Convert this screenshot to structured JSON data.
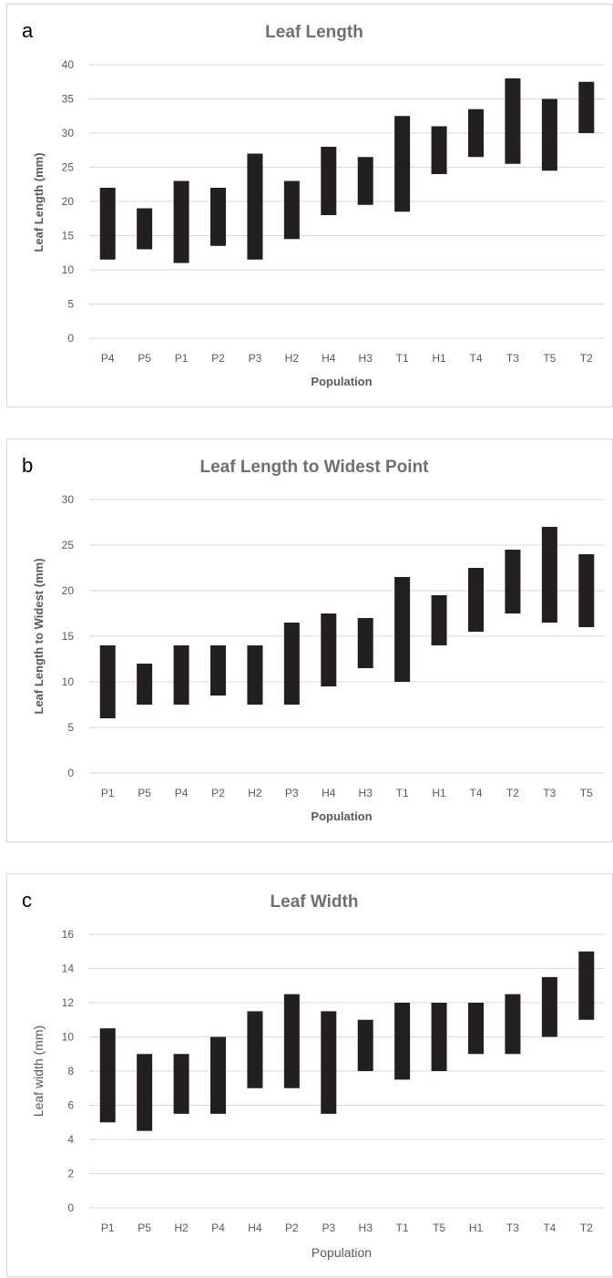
{
  "chart_data": [
    {
      "type": "bar",
      "panel_letter": "a",
      "title": "Leaf Length",
      "xlabel": "Population",
      "ylabel": "Leaf Length (mm)",
      "ylim": [
        0,
        40
      ],
      "yticks": [
        0,
        5,
        10,
        15,
        20,
        25,
        30,
        35,
        40
      ],
      "grid": true,
      "categories": [
        "P4",
        "P5",
        "P1",
        "P2",
        "P3",
        "H2",
        "H4",
        "H3",
        "T1",
        "H1",
        "T4",
        "T3",
        "T5",
        "T2"
      ],
      "series": [
        {
          "low": [
            11.5,
            13,
            11,
            13.5,
            11.5,
            14.5,
            18,
            19.5,
            18.5,
            24,
            26.5,
            25.5,
            24.5,
            30
          ],
          "high": [
            22,
            19,
            23,
            22,
            27,
            23,
            28,
            26.5,
            32.5,
            31,
            33.5,
            38,
            35,
            37.5
          ]
        }
      ]
    },
    {
      "type": "bar",
      "panel_letter": "b",
      "title": "Leaf Length to Widest Point",
      "xlabel": "Population",
      "ylabel": "Leaf Length to Widest (mm)",
      "ylim": [
        0,
        30
      ],
      "yticks": [
        0,
        5,
        10,
        15,
        20,
        25,
        30
      ],
      "grid": true,
      "categories": [
        "P1",
        "P5",
        "P4",
        "P2",
        "H2",
        "P3",
        "H4",
        "H3",
        "T1",
        "H1",
        "T4",
        "T2",
        "T3",
        "T5"
      ],
      "series": [
        {
          "low": [
            6,
            7.5,
            7.5,
            8.5,
            7.5,
            7.5,
            9.5,
            11.5,
            10,
            14,
            15.5,
            17.5,
            16.5,
            16
          ],
          "high": [
            14,
            12,
            14,
            14,
            14,
            16.5,
            17.5,
            17,
            21.5,
            19.5,
            22.5,
            24.5,
            27,
            24
          ]
        }
      ]
    },
    {
      "type": "bar",
      "panel_letter": "c",
      "title": "Leaf Width",
      "xlabel": "Population",
      "ylabel": "Leaf width (mm)",
      "ylim": [
        0,
        16
      ],
      "yticks": [
        0,
        2,
        4,
        6,
        8,
        10,
        12,
        14,
        16
      ],
      "grid": true,
      "categories": [
        "P1",
        "P5",
        "H2",
        "P4",
        "H4",
        "P2",
        "P3",
        "H3",
        "T1",
        "T5",
        "H1",
        "T3",
        "T4",
        "T2"
      ],
      "series": [
        {
          "low": [
            5,
            4.5,
            5.5,
            5.5,
            7,
            7,
            5.5,
            8,
            7.5,
            8,
            9,
            9,
            10,
            11
          ],
          "high": [
            10.5,
            9,
            9,
            10,
            11.5,
            12.5,
            11.5,
            11,
            12,
            12,
            12,
            12.5,
            13.5,
            15
          ]
        }
      ]
    }
  ],
  "colors": {
    "bar": "#231f20",
    "grid": "#d9d9d9",
    "title": "#6f6f6f",
    "text": "#595959"
  }
}
